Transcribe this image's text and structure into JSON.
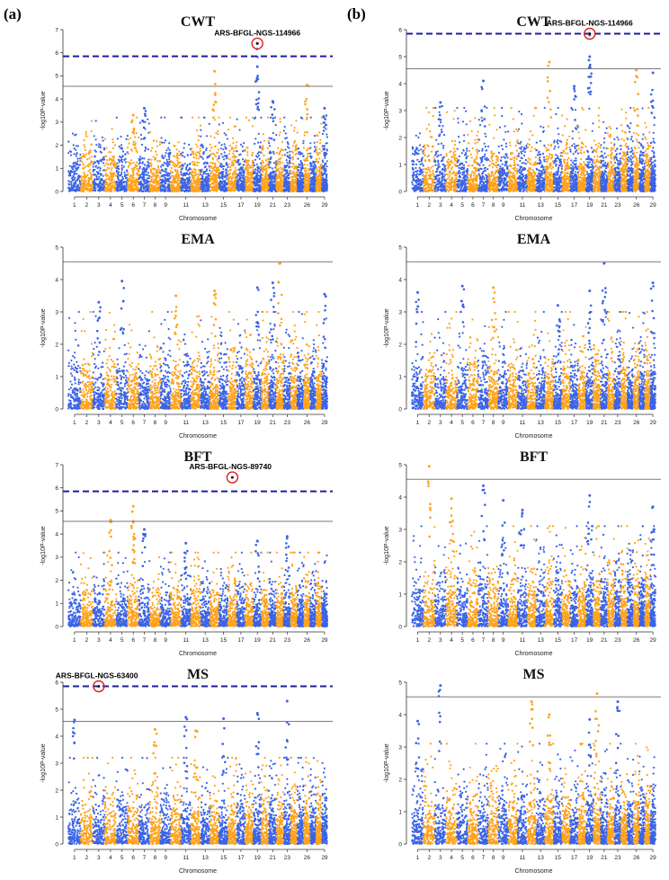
{
  "figure": {
    "panel_labels": [
      "(a)",
      "(b)"
    ]
  },
  "colors": {
    "chrom_odd": "#3b63e6",
    "chrom_even": "#ffa21a",
    "suggestive_line": "#7a7a7a",
    "genomewide_line": "#1d1d9c",
    "highlight_circle": "#e02020"
  },
  "chart_data": [
    {
      "panel": "a",
      "type": "scatter",
      "title": "CWT",
      "xlabel": "Chromosome",
      "ylabel": "-log10P-value",
      "ylim": [
        0,
        7
      ],
      "yticks": [
        0,
        1,
        2,
        3,
        4,
        5,
        6,
        7
      ],
      "suggestive": 4.55,
      "genomewide": 5.85,
      "x_tick_labels": [
        "1",
        "2",
        "3",
        "4",
        "5",
        "6",
        "7",
        "8",
        "9",
        "11",
        "13",
        "15",
        "17",
        "19",
        "21",
        "23",
        "26",
        "29"
      ],
      "baseline_peak": 1.9,
      "peaks": [
        {
          "chr": 14,
          "y": 5.2
        },
        {
          "chr": 19,
          "y": 5.4
        },
        {
          "chr": 19,
          "y": 6.4
        },
        {
          "chr": 26,
          "y": 4.6
        },
        {
          "chr": 6,
          "y": 3.3
        },
        {
          "chr": 7,
          "y": 3.6
        },
        {
          "chr": 21,
          "y": 3.9
        },
        {
          "chr": 29,
          "y": 3.6
        }
      ],
      "highlight": {
        "chr": 19,
        "y": 6.4,
        "label": "ARS-BFGL-NGS-114966"
      }
    },
    {
      "panel": "b",
      "type": "scatter",
      "title": "CWT",
      "xlabel": "Chromosome",
      "ylabel": "-log10P-value",
      "ylim": [
        0,
        6
      ],
      "yticks": [
        0,
        1,
        2,
        3,
        4,
        5,
        6
      ],
      "suggestive": 4.55,
      "genomewide": 5.85,
      "x_tick_labels": [
        "1",
        "2",
        "3",
        "4",
        "5",
        "6",
        "7",
        "8",
        "9",
        "11",
        "13",
        "15",
        "17",
        "19",
        "21",
        "23",
        "26",
        "29"
      ],
      "baseline_peak": 1.8,
      "peaks": [
        {
          "chr": 14,
          "y": 4.8
        },
        {
          "chr": 19,
          "y": 5.0
        },
        {
          "chr": 19,
          "y": 5.8
        },
        {
          "chr": 26,
          "y": 4.5
        },
        {
          "chr": 29,
          "y": 4.4
        },
        {
          "chr": 7,
          "y": 4.1
        },
        {
          "chr": 17,
          "y": 3.9
        },
        {
          "chr": 3,
          "y": 3.3
        }
      ],
      "highlight": {
        "chr": 19,
        "y": 5.85,
        "label": "ARS-BFGL-NGS-114966"
      }
    },
    {
      "panel": "a",
      "type": "scatter",
      "title": "EMA",
      "xlabel": "Chromosome",
      "ylabel": "-log10P-value",
      "ylim": [
        0,
        5
      ],
      "yticks": [
        0,
        1,
        2,
        3,
        4,
        5
      ],
      "suggestive": 4.55,
      "genomewide": null,
      "x_tick_labels": [
        "1",
        "2",
        "3",
        "4",
        "5",
        "6",
        "7",
        "8",
        "9",
        "11",
        "13",
        "15",
        "17",
        "19",
        "21",
        "23",
        "26",
        "29"
      ],
      "baseline_peak": 1.7,
      "peaks": [
        {
          "chr": 22,
          "y": 4.5
        },
        {
          "chr": 5,
          "y": 3.95
        },
        {
          "chr": 14,
          "y": 3.65
        },
        {
          "chr": 19,
          "y": 3.75
        },
        {
          "chr": 21,
          "y": 3.9
        },
        {
          "chr": 29,
          "y": 3.55
        },
        {
          "chr": 10,
          "y": 3.5
        },
        {
          "chr": 3,
          "y": 3.3
        }
      ],
      "highlight": null
    },
    {
      "panel": "b",
      "type": "scatter",
      "title": "EMA",
      "xlabel": "Chromosome",
      "ylabel": "-log10P-value",
      "ylim": [
        0,
        5
      ],
      "yticks": [
        0,
        1,
        2,
        3,
        4,
        5
      ],
      "suggestive": 4.55,
      "genomewide": null,
      "x_tick_labels": [
        "1",
        "2",
        "3",
        "4",
        "5",
        "6",
        "7",
        "8",
        "9",
        "11",
        "13",
        "15",
        "17",
        "19",
        "21",
        "23",
        "26",
        "29"
      ],
      "baseline_peak": 1.7,
      "peaks": [
        {
          "chr": 21,
          "y": 4.5
        },
        {
          "chr": 1,
          "y": 3.6
        },
        {
          "chr": 5,
          "y": 3.8
        },
        {
          "chr": 8,
          "y": 3.75
        },
        {
          "chr": 19,
          "y": 3.65
        },
        {
          "chr": 29,
          "y": 3.9
        },
        {
          "chr": 15,
          "y": 3.2
        }
      ],
      "highlight": null
    },
    {
      "panel": "a",
      "type": "scatter",
      "title": "BFT",
      "xlabel": "Chromosome",
      "ylabel": "-log10P-value",
      "ylim": [
        0,
        7
      ],
      "yticks": [
        0,
        1,
        2,
        3,
        4,
        5,
        6,
        7
      ],
      "suggestive": 4.55,
      "genomewide": 5.85,
      "x_tick_labels": [
        "1",
        "2",
        "3",
        "4",
        "5",
        "6",
        "7",
        "8",
        "9",
        "11",
        "13",
        "15",
        "17",
        "19",
        "21",
        "23",
        "26",
        "29"
      ],
      "baseline_peak": 1.9,
      "peaks": [
        {
          "chr": 6,
          "y": 5.2
        },
        {
          "chr": 4,
          "y": 4.6
        },
        {
          "chr": 6,
          "y": 4.55
        },
        {
          "chr": 7,
          "y": 4.2
        },
        {
          "chr": 19,
          "y": 3.7
        },
        {
          "chr": 23,
          "y": 3.9
        },
        {
          "chr": 11,
          "y": 3.6
        }
      ],
      "highlight": {
        "chr": 16,
        "y": 6.45,
        "label": "ARS-BFGL-NGS-89740"
      }
    },
    {
      "panel": "b",
      "type": "scatter",
      "title": "BFT",
      "xlabel": "Chromosome",
      "ylabel": "-log10P-value",
      "ylim": [
        0,
        5
      ],
      "yticks": [
        0,
        1,
        2,
        3,
        4,
        5
      ],
      "suggestive": 4.55,
      "genomewide": null,
      "x_tick_labels": [
        "1",
        "2",
        "3",
        "4",
        "5",
        "6",
        "7",
        "8",
        "9",
        "11",
        "13",
        "15",
        "17",
        "19",
        "21",
        "23",
        "26",
        "29"
      ],
      "baseline_peak": 1.8,
      "peaks": [
        {
          "chr": 2,
          "y": 4.95
        },
        {
          "chr": 7,
          "y": 4.35
        },
        {
          "chr": 4,
          "y": 3.95
        },
        {
          "chr": 9,
          "y": 3.9
        },
        {
          "chr": 19,
          "y": 4.05
        },
        {
          "chr": 29,
          "y": 3.7
        },
        {
          "chr": 11,
          "y": 3.6
        }
      ],
      "highlight": null
    },
    {
      "panel": "a",
      "type": "scatter",
      "title": "MS",
      "xlabel": "Chromosome",
      "ylabel": "-log10P-value",
      "ylim": [
        0,
        6
      ],
      "yticks": [
        0,
        1,
        2,
        3,
        4,
        5,
        6
      ],
      "suggestive": 4.55,
      "genomewide": 5.85,
      "x_tick_labels": [
        "1",
        "2",
        "3",
        "4",
        "5",
        "6",
        "7",
        "8",
        "9",
        "11",
        "13",
        "15",
        "17",
        "19",
        "21",
        "23",
        "26",
        "29"
      ],
      "baseline_peak": 1.9,
      "peaks": [
        {
          "chr": 1,
          "y": 4.6
        },
        {
          "chr": 11,
          "y": 4.7
        },
        {
          "chr": 15,
          "y": 4.65
        },
        {
          "chr": 19,
          "y": 4.85
        },
        {
          "chr": 23,
          "y": 5.3
        },
        {
          "chr": 8,
          "y": 4.25
        },
        {
          "chr": 12,
          "y": 4.2
        }
      ],
      "highlight": {
        "chr": 3,
        "y": 5.85,
        "label": "ARS-BFGL-NGS-63400"
      }
    },
    {
      "panel": "b",
      "type": "scatter",
      "title": "MS",
      "xlabel": "Chromosome",
      "ylabel": "-log10P-value",
      "ylim": [
        0,
        5
      ],
      "yticks": [
        0,
        1,
        2,
        3,
        4,
        5
      ],
      "suggestive": 4.55,
      "genomewide": null,
      "x_tick_labels": [
        "1",
        "2",
        "3",
        "4",
        "5",
        "6",
        "7",
        "8",
        "9",
        "11",
        "13",
        "15",
        "17",
        "19",
        "21",
        "23",
        "26",
        "29"
      ],
      "baseline_peak": 1.8,
      "peaks": [
        {
          "chr": 3,
          "y": 4.9
        },
        {
          "chr": 20,
          "y": 4.65
        },
        {
          "chr": 23,
          "y": 4.4
        },
        {
          "chr": 12,
          "y": 4.4
        },
        {
          "chr": 1,
          "y": 3.8
        },
        {
          "chr": 19,
          "y": 3.85
        },
        {
          "chr": 14,
          "y": 4.0
        }
      ],
      "highlight": null
    }
  ]
}
